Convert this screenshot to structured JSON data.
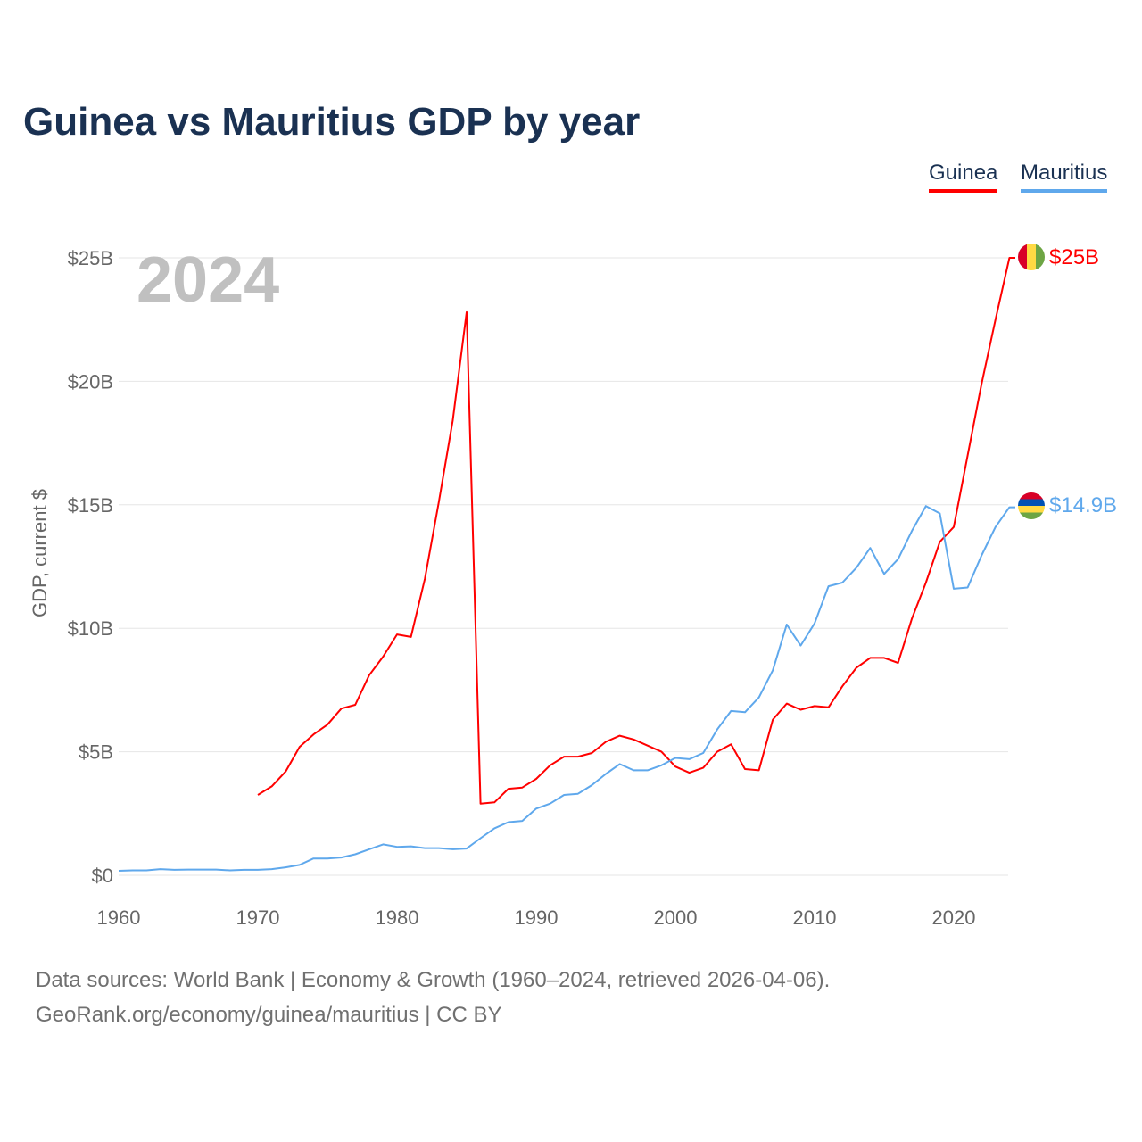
{
  "title": "Guinea vs Mauritius GDP by year",
  "legend": [
    "Guinea",
    "Mauritius"
  ],
  "year_label": "2024",
  "footer": {
    "line1": "Data sources: World Bank | Economy & Growth (1960–2024, retrieved 2026-04-06).",
    "line2": "GeoRank.org/economy/guinea/mauritius | CC BY"
  },
  "chart_data": {
    "type": "line",
    "title": "Guinea vs Mauritius GDP by year",
    "xlabel": "",
    "ylabel": "GDP, current $",
    "xlim": [
      1960,
      2024
    ],
    "ylim": [
      0,
      25
    ],
    "x_ticks": [
      1960,
      1970,
      1980,
      1990,
      2000,
      2010,
      2020
    ],
    "x_tick_labels": [
      "1960",
      "1970",
      "1980",
      "1990",
      "2000",
      "2010",
      "2020"
    ],
    "y_ticks": [
      0,
      5,
      10,
      15,
      20,
      25
    ],
    "y_tick_labels": [
      "$0",
      "$5B",
      "$10B",
      "$15B",
      "$20B",
      "$25B"
    ],
    "grid": true,
    "legend_position": "top-right",
    "units": "billion USD",
    "series": [
      {
        "name": "Guinea",
        "color": "#ff0000",
        "end_label": "$25B",
        "x_start": 1970,
        "values": [
          3.25,
          3.6,
          4.2,
          5.2,
          5.7,
          6.1,
          6.75,
          6.9,
          8.1,
          8.85,
          9.75,
          9.65,
          12.0,
          15.1,
          18.4,
          22.8,
          2.9,
          2.95,
          3.5,
          3.55,
          3.9,
          4.45,
          4.8,
          4.8,
          4.95,
          5.4,
          5.65,
          5.5,
          5.25,
          5.0,
          4.4,
          4.15,
          4.35,
          5.0,
          5.3,
          4.3,
          4.25,
          6.3,
          6.95,
          6.7,
          6.85,
          6.8,
          7.65,
          8.4,
          8.8,
          8.8,
          8.6,
          10.4,
          11.85,
          13.5,
          14.1,
          17.0,
          19.9,
          22.5,
          25.0
        ]
      },
      {
        "name": "Mauritius",
        "color": "#5fa8ec",
        "end_label": "$14.9B",
        "x_start": 1960,
        "values": [
          0.18,
          0.2,
          0.2,
          0.25,
          0.22,
          0.23,
          0.23,
          0.23,
          0.2,
          0.22,
          0.22,
          0.25,
          0.32,
          0.42,
          0.68,
          0.68,
          0.72,
          0.85,
          1.05,
          1.25,
          1.15,
          1.17,
          1.1,
          1.1,
          1.05,
          1.08,
          1.5,
          1.9,
          2.15,
          2.2,
          2.7,
          2.9,
          3.25,
          3.3,
          3.65,
          4.1,
          4.5,
          4.25,
          4.25,
          4.45,
          4.75,
          4.7,
          4.95,
          5.9,
          6.65,
          6.6,
          7.2,
          8.3,
          10.15,
          9.3,
          10.2,
          11.7,
          11.85,
          12.45,
          13.25,
          12.2,
          12.8,
          13.95,
          14.95,
          14.65,
          11.6,
          11.65,
          12.95,
          14.1,
          14.9
        ]
      }
    ]
  }
}
